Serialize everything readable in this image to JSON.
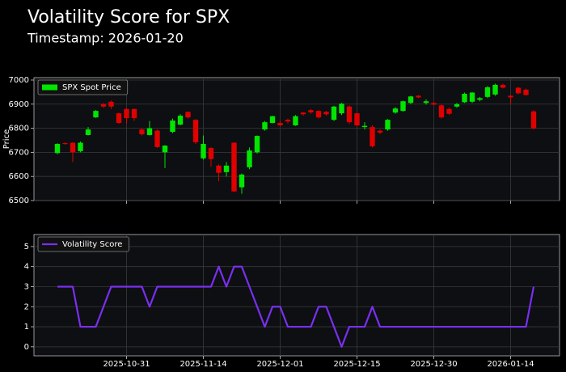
{
  "title": "Volatility Score for SPX",
  "subtitle": "Timestamp: 2026-01-20",
  "chart_data": [
    {
      "type": "candlestick",
      "ylabel": "Price",
      "ylim": [
        6500,
        7010
      ],
      "yticks": [
        6500,
        6600,
        6700,
        6800,
        6900,
        7000
      ],
      "grid": true,
      "legend": "upper left",
      "up_color": "#00e600",
      "down_color": "#e00000",
      "series": [
        {
          "name": "SPX Spot Price",
          "color": "#00e600",
          "open": [
            6697,
            6738,
            6740,
            6705,
            6772,
            6845,
            6900,
            6910,
            6862,
            6880,
            6880,
            6795,
            6772,
            6790,
            6700,
            6785,
            6815,
            6868,
            6835,
            6675,
            6718,
            6645,
            6618,
            6740,
            6555,
            6638,
            6700,
            6795,
            6822,
            6822,
            6835,
            6812,
            6865,
            6875,
            6872,
            6868,
            6835,
            6862,
            6890,
            6862,
            6805,
            6805,
            6790,
            6795,
            6865,
            6872,
            6905,
            6935,
            6905,
            6905,
            6895,
            6880,
            6890,
            6908,
            6910,
            6918,
            6930,
            6940,
            6980,
            6935,
            6968,
            6960,
            6870
          ],
          "high": [
            6738,
            6742,
            6742,
            6745,
            6805,
            6875,
            6905,
            6915,
            6865,
            6883,
            6882,
            6800,
            6830,
            6795,
            6730,
            6840,
            6858,
            6870,
            6838,
            6770,
            6722,
            6650,
            6660,
            6742,
            6612,
            6720,
            6770,
            6830,
            6852,
            6830,
            6840,
            6855,
            6868,
            6880,
            6875,
            6872,
            6893,
            6905,
            6895,
            6865,
            6825,
            6812,
            6795,
            6838,
            6888,
            6915,
            6935,
            6938,
            6920,
            6908,
            6900,
            6885,
            6905,
            6948,
            6950,
            6930,
            6975,
            6985,
            6985,
            6938,
            6972,
            6965,
            6875
          ],
          "low": [
            6692,
            6732,
            6660,
            6700,
            6770,
            6843,
            6885,
            6880,
            6818,
            6818,
            6830,
            6770,
            6770,
            6718,
            6635,
            6780,
            6812,
            6840,
            6735,
            6670,
            6640,
            6580,
            6600,
            6535,
            6528,
            6630,
            6695,
            6790,
            6820,
            6808,
            6820,
            6810,
            6852,
            6860,
            6840,
            6852,
            6830,
            6855,
            6818,
            6808,
            6795,
            6720,
            6775,
            6790,
            6860,
            6868,
            6900,
            6925,
            6898,
            6895,
            6840,
            6855,
            6885,
            6905,
            6905,
            6912,
            6925,
            6935,
            6965,
            6900,
            6940,
            6935,
            6795
          ],
          "close": [
            6735,
            6736,
            6700,
            6740,
            6795,
            6872,
            6890,
            6890,
            6822,
            6842,
            6842,
            6775,
            6800,
            6722,
            6728,
            6832,
            6852,
            6845,
            6742,
            6735,
            6672,
            6615,
            6645,
            6538,
            6608,
            6708,
            6768,
            6825,
            6850,
            6812,
            6828,
            6850,
            6858,
            6866,
            6845,
            6858,
            6890,
            6902,
            6825,
            6812,
            6810,
            6725,
            6782,
            6835,
            6882,
            6912,
            6932,
            6928,
            6912,
            6898,
            6845,
            6860,
            6900,
            6943,
            6948,
            6925,
            6970,
            6980,
            6968,
            6928,
            6945,
            6938,
            6800
          ]
        }
      ]
    },
    {
      "type": "line",
      "ylim": [
        -0.45,
        5.6
      ],
      "yticks": [
        0,
        1,
        2,
        3,
        4,
        5
      ],
      "grid": true,
      "legend": "upper left",
      "categories": [
        null,
        null,
        null,
        null,
        null,
        null,
        null,
        null,
        null,
        "2025-10-31",
        null,
        null,
        null,
        null,
        null,
        null,
        null,
        null,
        null,
        "2025-11-14",
        null,
        null,
        null,
        null,
        null,
        null,
        null,
        null,
        null,
        "2025-12-01",
        null,
        null,
        null,
        null,
        null,
        null,
        null,
        null,
        null,
        "2025-12-15",
        null,
        null,
        null,
        null,
        null,
        null,
        null,
        null,
        null,
        "2025-12-30",
        null,
        null,
        null,
        null,
        null,
        null,
        null,
        null,
        null,
        "2026-01-14",
        null,
        null,
        null
      ],
      "series": [
        {
          "name": "Volatility Score",
          "color": "#7a2ff0",
          "values": [
            3,
            3,
            3,
            1,
            1,
            1,
            2,
            3,
            3,
            3,
            3,
            3,
            2,
            3,
            3,
            3,
            3,
            3,
            3,
            3,
            3,
            4,
            3,
            4,
            4,
            3,
            2,
            1,
            2,
            2,
            1,
            1,
            1,
            1,
            2,
            2,
            1,
            0,
            1,
            1,
            1,
            2,
            1,
            1,
            1,
            1,
            1,
            1,
            1,
            1,
            1,
            1,
            1,
            1,
            1,
            1,
            1,
            1,
            1,
            1,
            1,
            1,
            3
          ]
        }
      ]
    }
  ]
}
